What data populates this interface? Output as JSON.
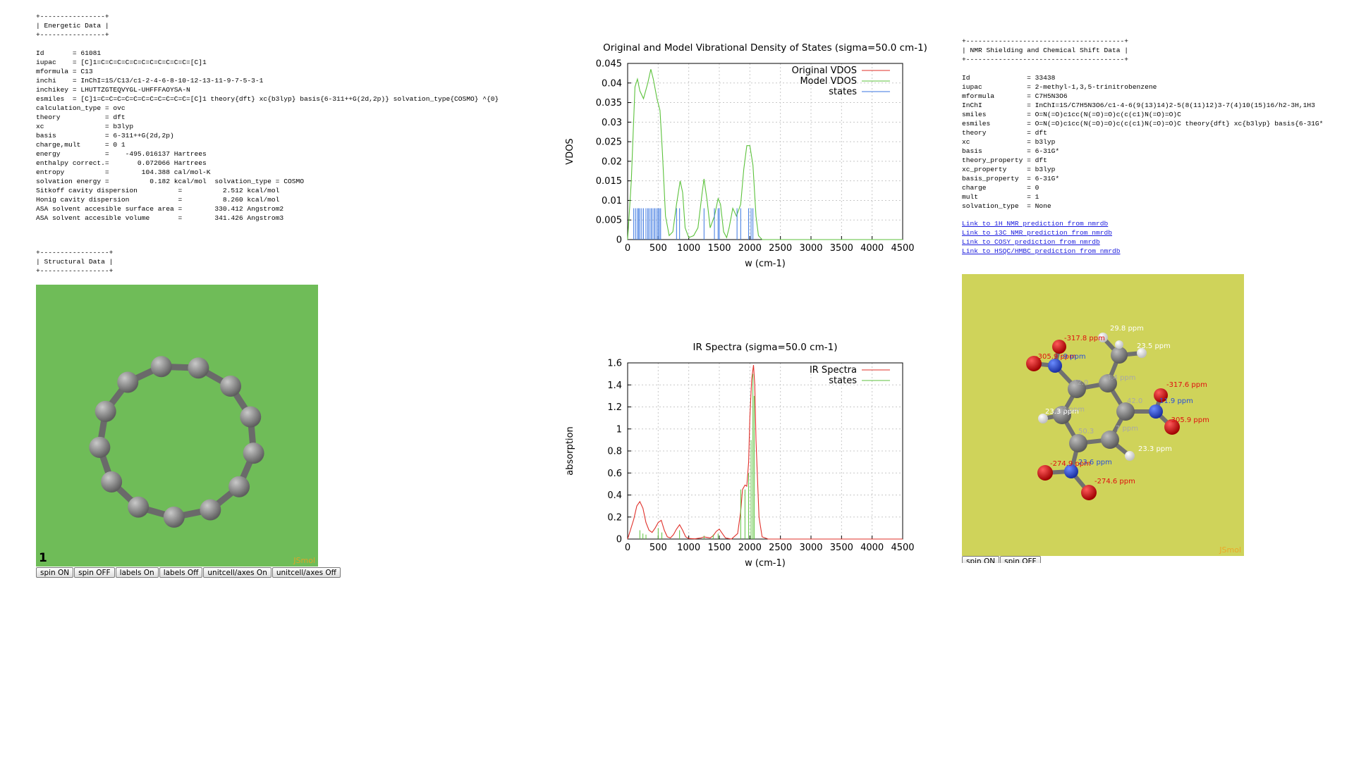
{
  "energetic": {
    "header": "+----------------+\n| Energetic Data |\n+----------------+",
    "lines": [
      "Id       = 61081",
      "iupac    = [C]1=C=C=C=C=C=C=C=C=C=C=C=[C]1",
      "mformula = C13",
      "inchi    = InChI=1S/C13/c1-2-4-6-8-10-12-13-11-9-7-5-3-1",
      "inchikey = LHUTTZGTEQVYGL-UHFFFAOYSA-N",
      "esmiles  = [C]1=C=C=C=C=C=C=C=C=C=C=C=[C]1 theory{dft} xc{b3lyp} basis{6-311++G(2d,2p)} solvation_type{COSMO} ^{0}",
      "calculation_type = ovc",
      "theory           = dft",
      "xc               = b3lyp",
      "basis            = 6-311++G(2d,2p)",
      "charge,mult      = 0 1",
      "energy           =    -495.016137 Hartrees",
      "enthalpy correct.=       0.072066 Hartrees",
      "entropy          =        104.388 cal/mol-K",
      "solvation energy =          0.182 kcal/mol  solvation_type = COSMO",
      "Sitkoff cavity dispersion          =          2.512 kcal/mol",
      "Honig cavity dispersion            =          8.260 kcal/mol",
      "ASA solvent accesible surface area =        330.412 Angstrom2",
      "ASA solvent accesible volume       =        341.426 Angstrom3"
    ]
  },
  "structural": {
    "header": "+-----------------+\n| Structural Data |\n+-----------------+",
    "frame_number": "1",
    "brand": "JSmol",
    "buttons": [
      "spin ON",
      "spin OFF",
      "labels On",
      "labels Off",
      "unitcell/axes On",
      "unitcell/axes Off"
    ]
  },
  "nmr": {
    "header": "+---------------------------------------+\n| NMR Shielding and Chemical Shift Data |\n+---------------------------------------+",
    "lines": [
      "Id              = 33438",
      "iupac           = 2-methyl-1,3,5-trinitrobenzene",
      "mformula        = C7H5N3O6",
      "InChI           = InChI=1S/C7H5N3O6/c1-4-6(9(13)14)2-5(8(11)12)3-7(4)10(15)16/h2-3H,1H3",
      "smiles          = O=N(=O)c1cc(N(=O)=O)c(c(c1)N(=O)=O)C",
      "esmiles         = O=N(=O)c1cc(N(=O)=O)c(c(c1)N(=O)=O)C theory{dft} xc{b3lyp} basis{6-31G*",
      "theory          = dft",
      "xc              = b3lyp",
      "basis           = 6-31G*",
      "theory_property = dft",
      "xc_property     = b3lyp",
      "basis_property  = 6-31G*",
      "charge          = 0",
      "mult            = 1",
      "solvation_type  = None"
    ],
    "links": [
      "Link to 1H NMR prediction from nmrdb",
      "Link to 13C NMR prediction from nmrdb",
      "Link to COSY prediction from nmrdb",
      "Link to HSQC/HMBC prediction from nmrdb"
    ],
    "brand": "JSmol",
    "buttons": [
      "spin ON",
      "spin OFF"
    ],
    "atom_labels": {
      "o_red": [
        "-317.8 ppm",
        "-317.6 ppm",
        "-305.9 ppm",
        "-274.9 ppm",
        "-274.6 ppm",
        "-305.9 ppm"
      ],
      "n_blue": [
        "-9 ppm",
        "11.9 ppm",
        "23.6 ppm"
      ],
      "h_white": [
        "29.8 ppm",
        "23.5 ppm",
        "23.3 ppm",
        "23.3 ppm"
      ],
      "c_grey": [
        "42.0",
        "4.4 ppm",
        "42.0",
        "7 ppm",
        "50.3",
        "7 ppm"
      ]
    }
  },
  "colors": {
    "left_viewer_bg": "#6fbc58",
    "right_viewer_bg": "#cfd35a",
    "carbon": "#7d7d7d",
    "oxygen": "#e01010",
    "nitrogen": "#2a4fd8",
    "hydrogen": "#f2f2f2",
    "vdos_original": "#e0302a",
    "vdos_model": "#5cc23c",
    "states_blue": "#3a76e0",
    "link": "#1a1add"
  },
  "chart_data": [
    {
      "type": "line",
      "title": "Original and Model Vibrational Density of States (sigma=50.0 cm-1)",
      "xlabel": "w (cm-1)",
      "ylabel": "VDOS",
      "xlim": [
        0,
        4500
      ],
      "ylim": [
        0,
        0.045
      ],
      "xticks": [
        0,
        500,
        1000,
        1500,
        2000,
        2500,
        3000,
        3500,
        4000,
        4500
      ],
      "yticks": [
        0,
        0.005,
        0.01,
        0.015,
        0.02,
        0.025,
        0.03,
        0.035,
        0.04,
        0.045
      ],
      "ytick_labels": [
        "0",
        "0.005",
        "0.01",
        "0.015",
        "0.02",
        "0.025",
        "0.03",
        "0.035",
        "0.04",
        "0.045"
      ],
      "grid": true,
      "legend": "top-right",
      "series": [
        {
          "name": "Original VDOS",
          "color": "#e0302a",
          "x": [],
          "y": []
        },
        {
          "name": "Model VDOS",
          "color": "#5cc23c",
          "x": [
            0,
            60,
            120,
            160,
            200,
            260,
            330,
            380,
            420,
            480,
            530,
            570,
            620,
            680,
            740,
            800,
            860,
            900,
            940,
            1000,
            1080,
            1150,
            1220,
            1250,
            1300,
            1350,
            1420,
            1480,
            1520,
            1570,
            1620,
            1660,
            1720,
            1780,
            1850,
            1900,
            1950,
            2000,
            2050,
            2100,
            2140,
            2200,
            2300,
            2500,
            3000,
            4500
          ],
          "y": [
            0,
            0.015,
            0.039,
            0.041,
            0.038,
            0.036,
            0.04,
            0.0435,
            0.041,
            0.036,
            0.033,
            0.022,
            0.006,
            0.001,
            0.002,
            0.009,
            0.015,
            0.012,
            0.003,
            0.0005,
            0.001,
            0.003,
            0.012,
            0.0155,
            0.01,
            0.003,
            0.006,
            0.0105,
            0.009,
            0.002,
            0.0005,
            0.003,
            0.008,
            0.006,
            0.009,
            0.018,
            0.024,
            0.024,
            0.019,
            0.006,
            0.001,
            0,
            0,
            0,
            0,
            0
          ]
        },
        {
          "name": "states",
          "color": "#3a76e0",
          "kind": "sticks",
          "height": 0.008,
          "x": [
            100,
            130,
            160,
            180,
            200,
            230,
            260,
            300,
            330,
            350,
            380,
            400,
            430,
            450,
            480,
            500,
            520,
            540,
            800,
            850,
            1250,
            1420,
            1480,
            1500,
            1790,
            1850,
            1980,
            2020,
            2050
          ]
        }
      ]
    },
    {
      "type": "line",
      "title": "IR Spectra (sigma=50.0 cm-1)",
      "xlabel": "w (cm-1)",
      "ylabel": "absorption",
      "xlim": [
        0,
        4500
      ],
      "ylim": [
        0,
        1.6
      ],
      "xticks": [
        0,
        500,
        1000,
        1500,
        2000,
        2500,
        3000,
        3500,
        4000,
        4500
      ],
      "yticks": [
        0,
        0.2,
        0.4,
        0.6,
        0.8,
        1,
        1.2,
        1.4,
        1.6
      ],
      "ytick_labels": [
        "0",
        "0.2",
        "0.4",
        "0.6",
        "0.8",
        "1",
        "1.2",
        "1.4",
        "1.6"
      ],
      "grid": true,
      "legend": "top-right",
      "series": [
        {
          "name": "IR Spectra",
          "color": "#e0302a",
          "x": [
            0,
            100,
            150,
            200,
            250,
            300,
            350,
            400,
            450,
            500,
            550,
            600,
            650,
            700,
            750,
            800,
            850,
            900,
            950,
            1000,
            1100,
            1200,
            1250,
            1300,
            1350,
            1400,
            1450,
            1500,
            1550,
            1600,
            1700,
            1800,
            1850,
            1880,
            1920,
            1950,
            1980,
            2000,
            2030,
            2060,
            2080,
            2100,
            2150,
            2200,
            2300,
            2500,
            4500
          ],
          "y": [
            0,
            0.18,
            0.3,
            0.34,
            0.28,
            0.15,
            0.08,
            0.06,
            0.1,
            0.15,
            0.17,
            0.08,
            0.02,
            0.01,
            0.04,
            0.09,
            0.13,
            0.08,
            0.02,
            0.005,
            0.002,
            0.01,
            0.02,
            0.015,
            0.01,
            0.03,
            0.07,
            0.09,
            0.05,
            0.01,
            0.0,
            0.05,
            0.25,
            0.45,
            0.49,
            0.48,
            0.7,
            1.1,
            1.45,
            1.58,
            1.4,
            0.9,
            0.2,
            0.02,
            0,
            0,
            0
          ]
        },
        {
          "name": "states",
          "color": "#5cc23c",
          "kind": "sticks",
          "x": [
            200,
            250,
            300,
            500,
            560,
            850,
            1250,
            1400,
            1480,
            1850,
            1920,
            1980,
            2020,
            2050,
            2070
          ],
          "y": [
            0.08,
            0.05,
            0.04,
            0.1,
            0.06,
            0.08,
            0.03,
            0.04,
            0.05,
            0.45,
            0.45,
            0.6,
            0.9,
            1.5,
            1.3
          ]
        }
      ]
    }
  ]
}
